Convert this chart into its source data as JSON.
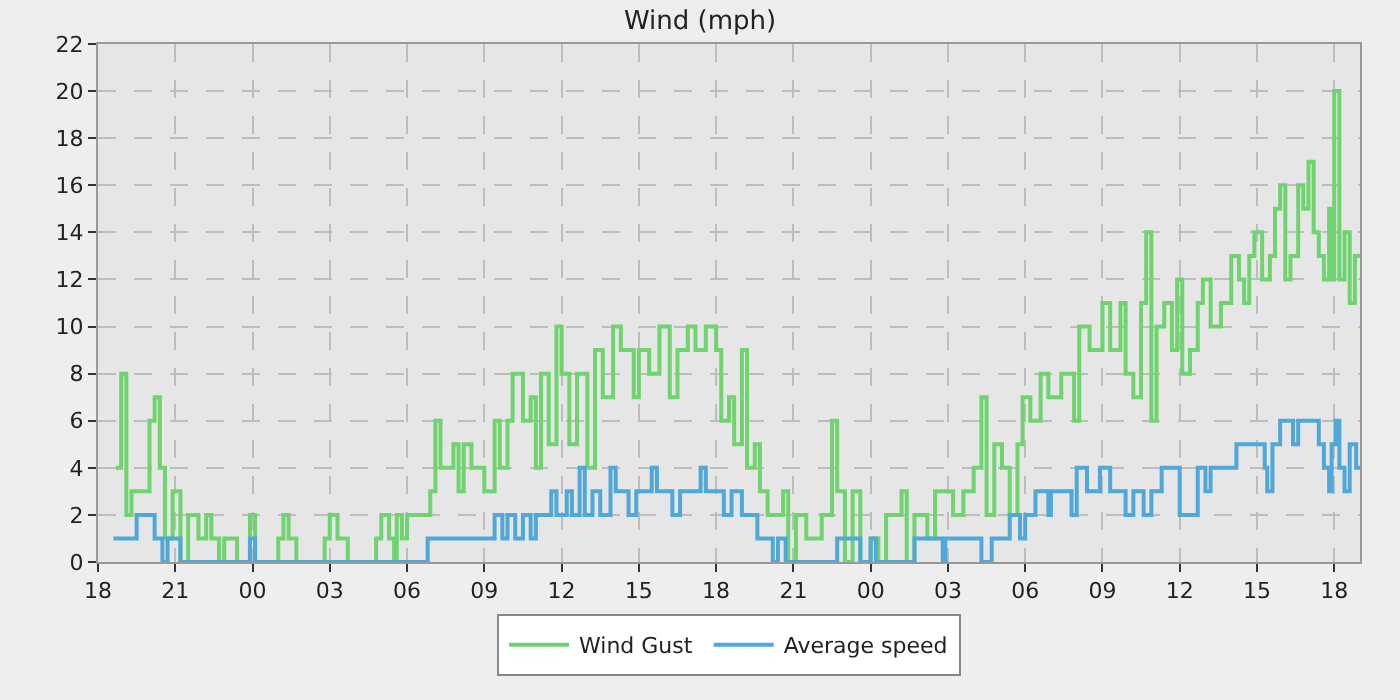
{
  "chart_data": {
    "type": "step",
    "title": "Wind (mph)",
    "xlim": [
      18,
      67
    ],
    "ylim": [
      0,
      22
    ],
    "xticks": [
      {
        "value": 18,
        "label": "18"
      },
      {
        "value": 21,
        "label": "21"
      },
      {
        "value": 24,
        "label": "00"
      },
      {
        "value": 27,
        "label": "03"
      },
      {
        "value": 30,
        "label": "06"
      },
      {
        "value": 33,
        "label": "09"
      },
      {
        "value": 36,
        "label": "12"
      },
      {
        "value": 39,
        "label": "15"
      },
      {
        "value": 42,
        "label": "18"
      },
      {
        "value": 45,
        "label": "21"
      },
      {
        "value": 48,
        "label": "00"
      },
      {
        "value": 51,
        "label": "03"
      },
      {
        "value": 54,
        "label": "06"
      },
      {
        "value": 57,
        "label": "09"
      },
      {
        "value": 60,
        "label": "12"
      },
      {
        "value": 63,
        "label": "15"
      },
      {
        "value": 66,
        "label": "18"
      }
    ],
    "yticks": [
      0,
      2,
      4,
      6,
      8,
      10,
      12,
      14,
      16,
      18,
      20,
      22
    ],
    "grid": true,
    "legend": "bottom",
    "line_style": "solid",
    "series": [
      {
        "name": "Wind Gust",
        "color": "#6fd36f",
        "x": [
          18.7,
          18.9,
          19.1,
          19.3,
          20.0,
          20.2,
          20.4,
          20.6,
          20.9,
          21.2,
          21.5,
          21.9,
          22.2,
          22.4,
          22.7,
          22.9,
          23.4,
          23.9,
          24.1,
          25.0,
          25.2,
          25.4,
          25.7,
          26.8,
          27.0,
          27.3,
          27.7,
          28.8,
          29.0,
          29.3,
          29.5,
          29.6,
          29.8,
          30.0,
          30.9,
          31.1,
          31.3,
          31.8,
          32.0,
          32.2,
          32.5,
          33.0,
          33.4,
          33.6,
          33.9,
          34.1,
          34.5,
          34.8,
          35.0,
          35.2,
          35.5,
          35.8,
          36.0,
          36.3,
          36.6,
          37.0,
          37.3,
          37.6,
          38.0,
          38.3,
          38.8,
          39.0,
          39.4,
          39.8,
          40.2,
          40.5,
          40.9,
          41.2,
          41.6,
          42.0,
          42.2,
          42.5,
          42.7,
          43.0,
          43.2,
          43.5,
          43.7,
          44.0,
          44.6,
          44.8,
          45.1,
          45.5,
          46.1,
          46.5,
          46.7,
          47.0,
          47.3,
          47.6,
          48.0,
          48.3,
          48.6,
          49.2,
          49.4,
          49.7,
          50.2,
          50.5,
          51.2,
          51.6,
          52.0,
          52.3,
          52.5,
          52.8,
          53.1,
          53.4,
          53.7,
          53.9,
          54.2,
          54.6,
          54.9,
          55.4,
          55.9,
          56.1,
          56.5,
          57.0,
          57.3,
          57.7,
          57.9,
          58.2,
          58.5,
          58.7,
          58.9,
          59.1,
          59.4,
          59.7,
          59.9,
          60.1,
          60.4,
          60.7,
          60.9,
          61.2,
          61.6,
          62.0,
          62.3,
          62.5,
          62.7,
          62.9,
          63.2,
          63.5,
          63.7,
          63.9,
          64.1,
          64.3,
          64.6,
          64.8,
          65.0,
          65.2,
          65.4,
          65.6,
          65.8,
          65.9,
          66.0,
          66.2,
          66.4,
          66.6,
          66.8,
          67.0
        ],
        "values": [
          4,
          8,
          2,
          3,
          6,
          7,
          4,
          1,
          3,
          0,
          2,
          1,
          2,
          1,
          0,
          1,
          0,
          2,
          0,
          1,
          2,
          1,
          0,
          1,
          2,
          1,
          0,
          1,
          2,
          1,
          0,
          2,
          1,
          2,
          3,
          6,
          4,
          5,
          3,
          5,
          4,
          3,
          6,
          4,
          6,
          8,
          6,
          7,
          4,
          8,
          5,
          10,
          8,
          5,
          8,
          4,
          9,
          7,
          10,
          9,
          7,
          9,
          8,
          10,
          7,
          9,
          10,
          9,
          10,
          9,
          6,
          7,
          5,
          9,
          4,
          5,
          3,
          2,
          3,
          0,
          2,
          1,
          2,
          6,
          3,
          0,
          3,
          0,
          1,
          0,
          2,
          3,
          0,
          2,
          1,
          3,
          2,
          3,
          4,
          7,
          2,
          5,
          4,
          2,
          5,
          7,
          6,
          8,
          7,
          8,
          6,
          10,
          9,
          11,
          9,
          11,
          8,
          7,
          11,
          14,
          6,
          10,
          11,
          9,
          12,
          8,
          9,
          11,
          12,
          10,
          11,
          13,
          12,
          11,
          13,
          14,
          12,
          13,
          15,
          16,
          12,
          13,
          16,
          15,
          17,
          14,
          13,
          12,
          15,
          12,
          20,
          12,
          14,
          11,
          13,
          13
        ]
      },
      {
        "name": "Average speed",
        "color": "#4fa8d8",
        "x": [
          18.6,
          19.5,
          20.2,
          20.5,
          20.7,
          21.2,
          23.9,
          24.1,
          30.8,
          33.4,
          33.7,
          33.9,
          34.2,
          34.5,
          34.8,
          35.0,
          35.6,
          35.8,
          36.2,
          36.4,
          36.7,
          36.9,
          37.2,
          37.5,
          37.9,
          38.1,
          38.6,
          38.9,
          39.5,
          39.7,
          40.3,
          40.6,
          41.4,
          41.6,
          42.3,
          42.6,
          43.0,
          43.6,
          44.2,
          44.4,
          44.7,
          46.7,
          47.6,
          48.0,
          48.2,
          49.7,
          50.8,
          50.9,
          52.3,
          52.7,
          53.4,
          53.8,
          54.0,
          54.4,
          54.9,
          55.0,
          55.8,
          56.0,
          56.4,
          56.9,
          57.3,
          57.9,
          58.2,
          58.6,
          58.9,
          59.3,
          60.0,
          60.7,
          61.0,
          61.2,
          62.2,
          63.3,
          63.4,
          63.6,
          63.9,
          64.4,
          64.6,
          65.4,
          65.6,
          65.8,
          65.9,
          66.05,
          66.2,
          66.4,
          66.6,
          66.85,
          67.0
        ],
        "values": [
          1,
          2,
          1,
          0,
          1,
          0,
          1,
          0,
          1,
          2,
          1,
          2,
          1,
          2,
          1,
          2,
          3,
          2,
          3,
          2,
          4,
          2,
          3,
          2,
          4,
          3,
          2,
          3,
          4,
          3,
          2,
          3,
          4,
          3,
          2,
          3,
          2,
          1,
          0,
          1,
          0,
          1,
          0,
          1,
          0,
          1,
          0,
          1,
          0,
          1,
          2,
          1,
          2,
          3,
          2,
          3,
          2,
          4,
          3,
          4,
          3,
          2,
          3,
          2,
          3,
          4,
          2,
          4,
          3,
          4,
          5,
          4,
          3,
          5,
          6,
          5,
          6,
          5,
          4,
          3,
          5,
          6,
          4,
          3,
          5,
          4,
          4
        ]
      }
    ]
  }
}
